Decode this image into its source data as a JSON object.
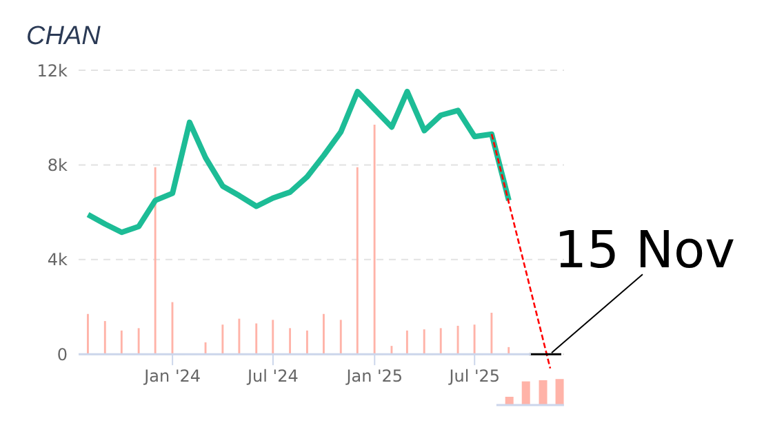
{
  "chart_data": {
    "type": "bar",
    "title": "CHAN",
    "x": [
      "2023-08",
      "2023-09",
      "2023-10",
      "2023-11",
      "2023-12",
      "2024-01",
      "2024-02",
      "2024-03",
      "2024-04",
      "2024-05",
      "2024-06",
      "2024-07",
      "2024-08",
      "2024-09",
      "2024-10",
      "2024-11",
      "2024-12",
      "2025-01",
      "2025-02",
      "2025-03",
      "2025-04",
      "2025-05",
      "2025-06",
      "2025-07",
      "2025-08",
      "2025-09"
    ],
    "series": [
      {
        "color": "#ffb3a8",
        "values": [
          1700,
          1400,
          1000,
          1100,
          7900,
          2200,
          null,
          500,
          1250,
          1500,
          1300,
          1450,
          1100,
          1000,
          1700,
          1450,
          7900,
          9700,
          350,
          1000,
          1050,
          1100,
          1200,
          1250,
          1750,
          300
        ]
      },
      {
        "type": "line",
        "color": "#1dbc96",
        "values": [
          5900,
          5500,
          5150,
          5400,
          6500,
          6800,
          9800,
          8300,
          7100,
          6700,
          6250,
          6600,
          6850,
          7500,
          8400,
          9400,
          11100,
          10350,
          9600,
          11100,
          9450,
          10100,
          10300,
          9200,
          9300,
          6500
        ]
      },
      {
        "type": "line",
        "color": "#ff0000",
        "line_style": "dashed",
        "x": [
          "2025-08",
          "2025-11-15"
        ],
        "values": [
          9300,
          -600
        ]
      },
      {
        "type": "bar",
        "color": "#ffb3a8",
        "x": [
          "2025-09",
          "2025-10",
          "2025-11",
          "2025-12"
        ],
        "base": [
          -2150,
          -2150,
          -2150,
          -2150
        ],
        "values": [
          350,
          1000,
          1050,
          1100
        ]
      },
      {
        "type": "line",
        "color": "#000000",
        "x": [
          "2025-10-08",
          "2025-12-05"
        ],
        "values": [
          0,
          0
        ]
      }
    ],
    "xlim": [
      "2023-07-15",
      "2025-12-10"
    ],
    "xticks": [
      {
        "value": "2024-01",
        "label": "Jan '24"
      },
      {
        "value": "2024-07",
        "label": "Jul '24"
      },
      {
        "value": "2025-01",
        "label": "Jan '25"
      },
      {
        "value": "2025-07",
        "label": "Jul '25"
      }
    ],
    "ylim": [
      -2150,
      12000
    ],
    "yticks": [
      {
        "value": 0,
        "label": "0"
      },
      {
        "value": 4000,
        "label": "4k"
      },
      {
        "value": 8000,
        "label": "8k"
      },
      {
        "value": 12000,
        "label": "12k"
      }
    ],
    "grid": "y",
    "annotations": [
      {
        "text": "15 Nov",
        "x": "2025-11-15",
        "y": 0
      }
    ]
  }
}
